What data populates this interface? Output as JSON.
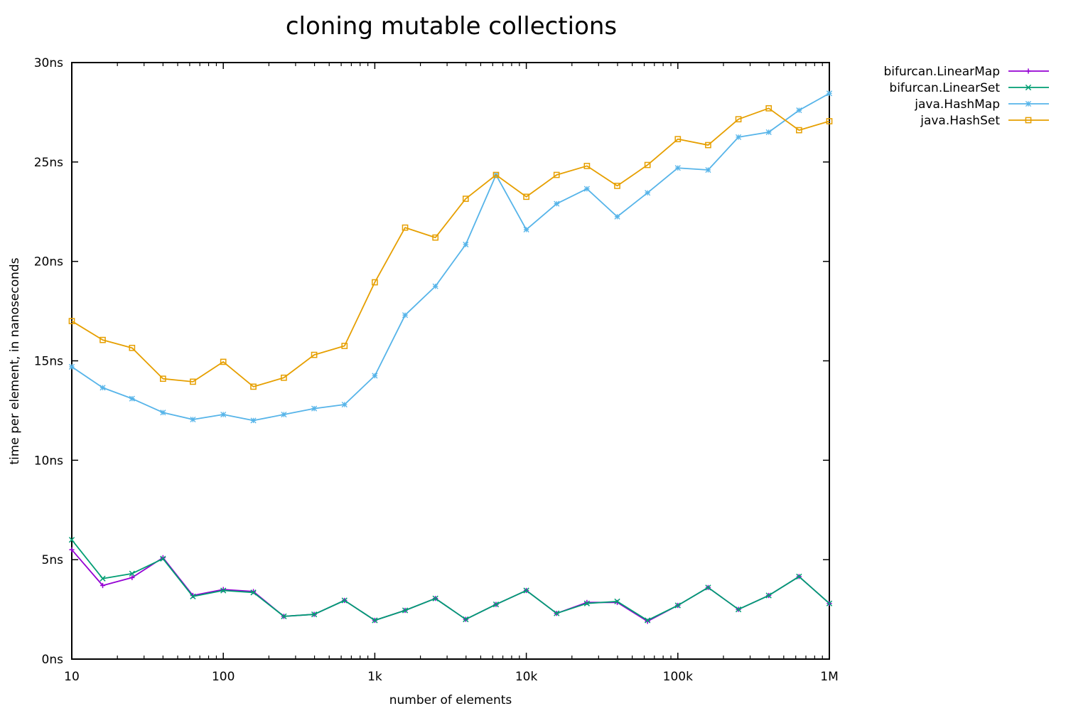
{
  "chart_data": {
    "type": "line",
    "title": "cloning mutable collections",
    "xlabel": "number of elements",
    "ylabel": "time per element, in nanoseconds",
    "xscale": "log",
    "xlim": [
      10,
      1000000
    ],
    "ylim": [
      0,
      30
    ],
    "grid": false,
    "legend_position": "outside-top-right",
    "xticks": [
      {
        "value": 10,
        "label": "10"
      },
      {
        "value": 100,
        "label": "100"
      },
      {
        "value": 1000,
        "label": "1k"
      },
      {
        "value": 10000,
        "label": "10k"
      },
      {
        "value": 100000,
        "label": "100k"
      },
      {
        "value": 1000000,
        "label": "1M"
      }
    ],
    "yticks": [
      {
        "value": 0,
        "label": "0ns"
      },
      {
        "value": 5,
        "label": "5ns"
      },
      {
        "value": 10,
        "label": "10ns"
      },
      {
        "value": 15,
        "label": "15ns"
      },
      {
        "value": 20,
        "label": "20ns"
      },
      {
        "value": 25,
        "label": "25ns"
      },
      {
        "value": 30,
        "label": "30ns"
      }
    ],
    "x": [
      10,
      16,
      25,
      40,
      63,
      100,
      158,
      251,
      398,
      631,
      1000,
      1585,
      2512,
      3981,
      6310,
      10000,
      15849,
      25119,
      39811,
      63096,
      100000,
      158489,
      251189,
      398107,
      630957,
      1000000
    ],
    "series": [
      {
        "name": "bifurcan.LinearMap",
        "color": "#9400d3",
        "marker": "plus",
        "values": [
          5.5,
          3.7,
          4.1,
          5.1,
          3.2,
          3.5,
          3.4,
          2.15,
          2.25,
          2.95,
          1.95,
          2.45,
          3.05,
          2.0,
          2.75,
          3.45,
          2.3,
          2.85,
          2.85,
          1.9,
          2.7,
          3.6,
          2.5,
          3.2,
          4.15,
          2.8
        ]
      },
      {
        "name": "bifurcan.LinearSet",
        "color": "#009e73",
        "marker": "cross",
        "values": [
          6.0,
          4.05,
          4.3,
          5.05,
          3.15,
          3.45,
          3.35,
          2.15,
          2.25,
          2.95,
          1.95,
          2.45,
          3.05,
          2.0,
          2.75,
          3.45,
          2.3,
          2.8,
          2.9,
          1.95,
          2.7,
          3.6,
          2.5,
          3.2,
          4.15,
          2.8
        ]
      },
      {
        "name": "java.HashMap",
        "color": "#56b4e9",
        "marker": "star",
        "values": [
          14.7,
          13.65,
          13.1,
          12.4,
          12.05,
          12.3,
          12.0,
          12.3,
          12.6,
          12.8,
          14.25,
          17.3,
          18.75,
          20.85,
          24.35,
          21.6,
          22.9,
          23.65,
          22.25,
          23.45,
          24.7,
          24.6,
          26.25,
          26.5,
          27.6,
          28.45
        ]
      },
      {
        "name": "java.HashSet",
        "color": "#e69f00",
        "marker": "square",
        "values": [
          17.0,
          16.05,
          15.65,
          14.1,
          13.95,
          14.95,
          13.7,
          14.15,
          15.3,
          15.75,
          18.95,
          21.7,
          21.2,
          23.15,
          24.35,
          23.25,
          24.35,
          24.8,
          23.8,
          24.85,
          26.15,
          25.85,
          27.15,
          27.7,
          26.6,
          27.05
        ]
      }
    ]
  }
}
